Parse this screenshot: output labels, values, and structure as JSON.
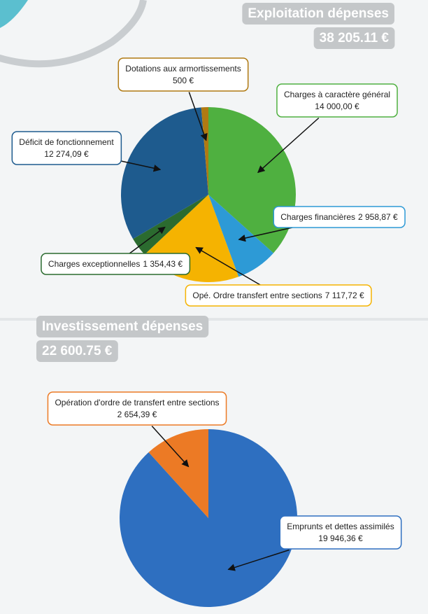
{
  "chart_data": [
    {
      "type": "pie",
      "title": "Exploitation dépenses",
      "subtitle": "38 205.11 €",
      "categories": [
        "Charges à caractère général",
        "Charges financières",
        "Opé. Ordre transfert entre sections",
        "Charges exceptionnelles",
        "Déficit de fonctionnement",
        "Dotations aux armortissements"
      ],
      "values": [
        14000,
        2958.87,
        7117.72,
        1354.43,
        12274.09,
        500
      ],
      "value_labels": [
        "14 000,00 €",
        "2 958,87 €",
        "7 117,72 €",
        "1 354,43 €",
        "12 274,09 €",
        "500 €"
      ],
      "colors": [
        "#4fb040",
        "#2d9ad6",
        "#f5b301",
        "#2b6b2f",
        "#1e5b8e",
        "#b07a12"
      ]
    },
    {
      "type": "pie",
      "title": "Investissement dépenses",
      "subtitle": "22 600.75 €",
      "categories": [
        "Emprunts et dettes assimilés",
        "Opération d'ordre de transfert entre sections"
      ],
      "values": [
        19946.36,
        2654.39
      ],
      "value_labels": [
        "19 946,36 €",
        "2 654,39 €"
      ],
      "colors": [
        "#2e6fc0",
        "#ec7a25"
      ]
    }
  ]
}
